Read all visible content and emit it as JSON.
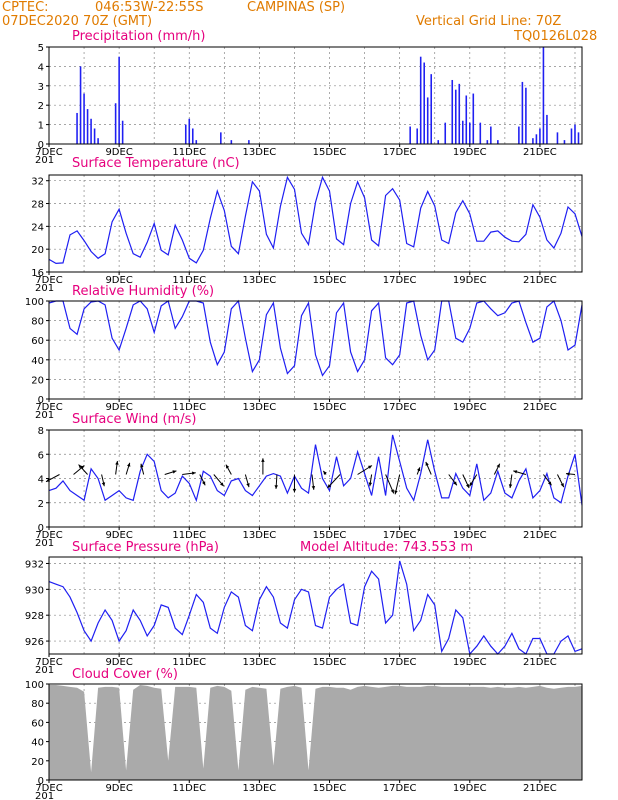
{
  "colors": {
    "header": "#e07b00",
    "title": "#e6007e",
    "series": "#1f1ff2",
    "cloud": "#aaaaaa",
    "grid": "#888888",
    "frame": "#000000"
  },
  "header": {
    "source": "CPTEC:",
    "coords": "046:53W-22:55S",
    "station": "CAMPINAS (SP)",
    "run": "07DEC2020 70Z (GMT)",
    "grid_note": "Vertical Grid Line: 70Z",
    "model": "TQ0126L028"
  },
  "xaxis": {
    "tick_labels": [
      "7DEC",
      "9DEC",
      "11DEC",
      "13DEC",
      "15DEC",
      "17DEC",
      "19DEC",
      "21DEC"
    ],
    "cut_label": "201",
    "range_days": [
      7,
      22.2
    ]
  },
  "panels": {
    "precip": {
      "title": "Precipitation (mm/h)"
    },
    "temp": {
      "title": "Surface Temperature (nC)"
    },
    "rh": {
      "title": "Relative Humidity (%)"
    },
    "wind": {
      "title": "Surface Wind (m/s)"
    },
    "pres": {
      "title": "Surface Pressure (hPa)",
      "extra": "Model Altitude: 743.553 m"
    },
    "cloud": {
      "title": "Cloud Cover (%)"
    }
  },
  "chart_data": [
    {
      "id": "precip",
      "type": "bar",
      "title": "Precipitation (mm/h)",
      "ylim": [
        0,
        5
      ],
      "yticks": [
        0,
        1,
        2,
        3,
        4,
        5
      ],
      "x": [
        7.8,
        7.9,
        8.0,
        8.1,
        8.2,
        8.3,
        8.4,
        8.9,
        9.0,
        9.1,
        10.9,
        11.0,
        11.1,
        11.2,
        11.9,
        12.2,
        12.7,
        17.3,
        17.5,
        17.6,
        17.7,
        17.8,
        17.9,
        18.1,
        18.3,
        18.5,
        18.6,
        18.7,
        18.8,
        18.9,
        19.0,
        19.1,
        19.3,
        19.5,
        19.6,
        19.8,
        20.4,
        20.5,
        20.6,
        20.8,
        20.9,
        21.0,
        21.1,
        21.2,
        21.5,
        21.7,
        21.9,
        22.0,
        22.1
      ],
      "values": [
        1.6,
        4.0,
        2.6,
        1.8,
        1.3,
        0.8,
        0.3,
        2.1,
        4.5,
        1.2,
        1.0,
        1.3,
        0.8,
        0.2,
        0.6,
        0.2,
        0.2,
        0.9,
        0.8,
        4.5,
        4.2,
        2.4,
        3.6,
        0.2,
        1.1,
        3.3,
        2.8,
        3.1,
        1.2,
        2.5,
        1.1,
        2.6,
        1.1,
        0.2,
        0.9,
        0.2,
        0.9,
        3.2,
        2.9,
        0.3,
        0.5,
        0.8,
        5.0,
        1.5,
        0.6,
        0.2,
        0.8,
        1.0,
        0.6
      ]
    },
    {
      "id": "temp",
      "type": "line",
      "title": "Surface Temperature (nC)",
      "ylim": [
        16,
        33
      ],
      "yticks": [
        16,
        20,
        24,
        28,
        32
      ],
      "x": [
        7.0,
        7.2,
        7.4,
        7.6,
        7.8,
        8.0,
        8.2,
        8.4,
        8.6,
        8.8,
        9.0,
        9.2,
        9.4,
        9.6,
        9.8,
        10.0,
        10.2,
        10.4,
        10.6,
        10.8,
        11.0,
        11.2,
        11.4,
        11.6,
        11.8,
        12.0,
        12.2,
        12.4,
        12.6,
        12.8,
        13.0,
        13.2,
        13.4,
        13.6,
        13.8,
        14.0,
        14.2,
        14.4,
        14.6,
        14.8,
        15.0,
        15.2,
        15.4,
        15.6,
        15.8,
        16.0,
        16.2,
        16.4,
        16.6,
        16.8,
        17.0,
        17.2,
        17.4,
        17.6,
        17.8,
        18.0,
        18.2,
        18.4,
        18.6,
        18.8,
        19.0,
        19.2,
        19.4,
        19.6,
        19.8,
        20.0,
        20.2,
        20.4,
        20.6,
        20.8,
        21.0,
        21.2,
        21.4,
        21.6,
        21.8,
        22.0,
        22.2
      ],
      "values": [
        18.2,
        17.5,
        17.6,
        22.5,
        23.2,
        21.5,
        19.6,
        18.4,
        19.2,
        24.8,
        27.0,
        22.8,
        19.2,
        18.6,
        21.2,
        24.5,
        19.8,
        19.0,
        24.2,
        21.6,
        18.4,
        17.6,
        19.8,
        25.4,
        30.2,
        26.8,
        20.5,
        19.2,
        25.8,
        31.8,
        30.2,
        22.6,
        20.2,
        27.5,
        32.6,
        30.5,
        22.8,
        20.8,
        28.2,
        32.6,
        30.2,
        21.8,
        20.8,
        28.0,
        31.8,
        29.0,
        21.6,
        20.6,
        29.4,
        30.6,
        28.6,
        21.0,
        20.4,
        27.2,
        30.1,
        27.6,
        21.6,
        21.0,
        26.4,
        28.5,
        26.2,
        21.4,
        21.4,
        23.0,
        23.2,
        22.1,
        21.4,
        21.3,
        22.6,
        27.8,
        25.6,
        21.6,
        20.2,
        22.8,
        27.4,
        26.2,
        22.2
      ]
    },
    {
      "id": "rh",
      "type": "line",
      "title": "Relative Humidity (%)",
      "ylim": [
        0,
        100
      ],
      "yticks": [
        0,
        20,
        40,
        60,
        80,
        100
      ],
      "x": [
        7.0,
        7.2,
        7.4,
        7.6,
        7.8,
        8.0,
        8.2,
        8.4,
        8.6,
        8.8,
        9.0,
        9.2,
        9.4,
        9.6,
        9.8,
        10.0,
        10.2,
        10.4,
        10.6,
        10.8,
        11.0,
        11.2,
        11.4,
        11.6,
        11.8,
        12.0,
        12.2,
        12.4,
        12.6,
        12.8,
        13.0,
        13.2,
        13.4,
        13.6,
        13.8,
        14.0,
        14.2,
        14.4,
        14.6,
        14.8,
        15.0,
        15.2,
        15.4,
        15.6,
        15.8,
        16.0,
        16.2,
        16.4,
        16.6,
        16.8,
        17.0,
        17.2,
        17.4,
        17.6,
        17.8,
        18.0,
        18.2,
        18.4,
        18.6,
        18.8,
        19.0,
        19.2,
        19.4,
        19.6,
        19.8,
        20.0,
        20.2,
        20.4,
        20.6,
        20.8,
        21.0,
        21.2,
        21.4,
        21.6,
        21.8,
        22.0,
        22.2
      ],
      "values": [
        98,
        100,
        100,
        72,
        66,
        92,
        99,
        100,
        96,
        62,
        50,
        72,
        96,
        100,
        92,
        68,
        95,
        100,
        72,
        84,
        100,
        100,
        98,
        58,
        35,
        48,
        92,
        100,
        62,
        28,
        40,
        86,
        98,
        52,
        26,
        34,
        85,
        98,
        45,
        24,
        34,
        88,
        98,
        48,
        28,
        40,
        90,
        98,
        42,
        35,
        45,
        98,
        100,
        65,
        40,
        50,
        100,
        100,
        62,
        58,
        72,
        98,
        100,
        92,
        85,
        88,
        98,
        100,
        78,
        58,
        62,
        94,
        100,
        80,
        50,
        55,
        96
      ]
    },
    {
      "id": "wind",
      "type": "line",
      "title": "Surface Wind (m/s)",
      "ylim": [
        0,
        8
      ],
      "yticks": [
        0,
        2,
        4,
        6,
        8
      ],
      "x": [
        7.0,
        7.2,
        7.4,
        7.6,
        7.8,
        8.0,
        8.2,
        8.4,
        8.6,
        8.8,
        9.0,
        9.2,
        9.4,
        9.6,
        9.8,
        10.0,
        10.2,
        10.4,
        10.6,
        10.8,
        11.0,
        11.2,
        11.4,
        11.6,
        11.8,
        12.0,
        12.2,
        12.4,
        12.6,
        12.8,
        13.0,
        13.2,
        13.4,
        13.6,
        13.8,
        14.0,
        14.2,
        14.4,
        14.6,
        14.8,
        15.0,
        15.2,
        15.4,
        15.6,
        15.8,
        16.0,
        16.2,
        16.4,
        16.6,
        16.8,
        17.0,
        17.2,
        17.4,
        17.6,
        17.8,
        18.0,
        18.2,
        18.4,
        18.6,
        18.8,
        19.0,
        19.2,
        19.4,
        19.6,
        19.8,
        20.0,
        20.2,
        20.4,
        20.6,
        20.8,
        21.0,
        21.2,
        21.4,
        21.6,
        21.8,
        22.0,
        22.2
      ],
      "values": [
        3.0,
        3.2,
        3.8,
        3.0,
        2.6,
        2.2,
        4.8,
        4.0,
        2.2,
        2.6,
        3.0,
        2.4,
        2.2,
        4.6,
        6.0,
        5.4,
        3.0,
        2.4,
        2.8,
        4.2,
        3.6,
        2.2,
        4.6,
        4.2,
        3.0,
        2.6,
        3.8,
        4.0,
        3.0,
        2.6,
        3.4,
        4.2,
        4.4,
        4.2,
        2.8,
        4.2,
        3.2,
        2.8,
        6.8,
        4.0,
        3.0,
        5.8,
        3.4,
        4.0,
        6.2,
        4.4,
        2.6,
        5.8,
        2.6,
        7.6,
        5.4,
        3.2,
        2.2,
        4.4,
        7.2,
        4.6,
        2.4,
        2.4,
        4.4,
        3.2,
        2.6,
        5.2,
        2.2,
        2.8,
        4.6,
        2.8,
        2.4,
        3.8,
        4.8,
        2.4,
        3.0,
        4.4,
        2.4,
        2.0,
        4.2,
        6.0,
        1.8
      ]
    },
    {
      "id": "pres",
      "type": "line",
      "title": "Surface Pressure (hPa)",
      "ylim": [
        925,
        932.5
      ],
      "yticks": [
        926,
        928,
        930,
        932
      ],
      "x": [
        7.0,
        7.2,
        7.4,
        7.6,
        7.8,
        8.0,
        8.2,
        8.4,
        8.6,
        8.8,
        9.0,
        9.2,
        9.4,
        9.6,
        9.8,
        10.0,
        10.2,
        10.4,
        10.6,
        10.8,
        11.0,
        11.2,
        11.4,
        11.6,
        11.8,
        12.0,
        12.2,
        12.4,
        12.6,
        12.8,
        13.0,
        13.2,
        13.4,
        13.6,
        13.8,
        14.0,
        14.2,
        14.4,
        14.6,
        14.8,
        15.0,
        15.2,
        15.4,
        15.6,
        15.8,
        16.0,
        16.2,
        16.4,
        16.6,
        16.8,
        17.0,
        17.2,
        17.4,
        17.6,
        17.8,
        18.0,
        18.2,
        18.4,
        18.6,
        18.8,
        19.0,
        19.2,
        19.4,
        19.6,
        19.8,
        20.0,
        20.2,
        20.4,
        20.6,
        20.8,
        21.0,
        21.2,
        21.4,
        21.6,
        21.8,
        22.0,
        22.2
      ],
      "values": [
        930.6,
        930.4,
        930.2,
        929.4,
        928.2,
        926.8,
        926.0,
        927.4,
        928.4,
        927.6,
        926.0,
        926.8,
        928.4,
        927.6,
        926.4,
        927.2,
        928.8,
        928.6,
        927.0,
        926.5,
        928.0,
        929.6,
        929.0,
        927.0,
        926.6,
        928.6,
        929.8,
        929.4,
        927.2,
        926.8,
        929.2,
        930.2,
        929.4,
        927.4,
        927.0,
        929.2,
        930.0,
        929.8,
        927.2,
        927.0,
        929.4,
        930.0,
        930.4,
        927.4,
        927.2,
        930.2,
        931.4,
        930.8,
        927.4,
        928.0,
        932.2,
        930.4,
        926.8,
        927.6,
        929.6,
        928.8,
        925.2,
        926.2,
        928.4,
        927.8,
        925.0,
        925.6,
        926.4,
        925.6,
        924.9,
        925.6,
        926.6,
        925.4,
        925.0,
        926.2,
        926.2,
        925.0,
        925.0,
        926.0,
        926.4,
        925.2,
        925.4
      ]
    },
    {
      "id": "cloud",
      "type": "area",
      "title": "Cloud Cover (%)",
      "ylim": [
        0,
        100
      ],
      "yticks": [
        0,
        20,
        40,
        60,
        80,
        100
      ],
      "x": [
        7.0,
        7.2,
        7.4,
        7.6,
        7.8,
        8.0,
        8.2,
        8.4,
        8.6,
        8.8,
        9.0,
        9.2,
        9.4,
        9.6,
        9.8,
        10.0,
        10.2,
        10.4,
        10.6,
        10.8,
        11.0,
        11.2,
        11.4,
        11.6,
        11.8,
        12.0,
        12.2,
        12.4,
        12.6,
        12.8,
        13.0,
        13.2,
        13.4,
        13.6,
        13.8,
        14.0,
        14.2,
        14.4,
        14.6,
        14.8,
        15.0,
        15.2,
        15.4,
        15.6,
        15.8,
        16.0,
        16.2,
        16.4,
        16.6,
        16.8,
        17.0,
        17.2,
        17.4,
        17.6,
        17.8,
        18.0,
        18.2,
        18.4,
        18.6,
        18.8,
        19.0,
        19.2,
        19.4,
        19.6,
        19.8,
        20.0,
        20.2,
        20.4,
        20.6,
        20.8,
        21.0,
        21.2,
        21.4,
        21.6,
        21.8,
        22.0,
        22.2
      ],
      "values": [
        99,
        99,
        98,
        97,
        96,
        92,
        8,
        96,
        97,
        97,
        96,
        10,
        94,
        99,
        98,
        96,
        95,
        20,
        97,
        97,
        97,
        96,
        12,
        96,
        98,
        97,
        93,
        10,
        94,
        97,
        96,
        95,
        15,
        95,
        97,
        98,
        96,
        10,
        95,
        97,
        97,
        96,
        96,
        94,
        97,
        98,
        97,
        96,
        97,
        98,
        98,
        97,
        97,
        97,
        98,
        98,
        97,
        97,
        97,
        97,
        97,
        97,
        97,
        96,
        97,
        96,
        96,
        97,
        96,
        97,
        98,
        96,
        95,
        96,
        97,
        97,
        98
      ]
    }
  ],
  "wind_arrows": {
    "x": [
      7.3,
      7.7,
      8.1,
      8.5,
      8.9,
      9.2,
      9.7,
      10.3,
      10.8,
      11.3,
      11.7,
      12.2,
      12.6,
      13.1,
      13.5,
      14.0,
      14.5,
      14.9,
      15.3,
      15.8,
      16.2,
      16.6,
      17.0,
      17.5,
      17.9,
      18.4,
      18.8,
      19.2,
      19.7,
      20.2,
      20.6,
      21.1,
      21.5,
      22.0
    ],
    "u": [
      -1.5,
      1.2,
      -1.0,
      0.3,
      0.2,
      0.4,
      -0.3,
      1.3,
      1.5,
      0.6,
      1.1,
      -0.6,
      0.4,
      0,
      -0.1,
      0,
      0.2,
      -0.3,
      -1.4,
      1.6,
      -0.2,
      0.9,
      -0.5,
      0.3,
      -0.6,
      0.9,
      0.7,
      -0.8,
      0.6,
      -0.2,
      -1.4,
      0.9,
      0.7,
      -1.0
    ],
    "v": [
      -0.8,
      1.0,
      1.1,
      -1.3,
      1.5,
      1.3,
      1.2,
      0.4,
      0.2,
      -1.2,
      -1.3,
      1.1,
      -1.4,
      1.8,
      -1.6,
      -2.0,
      -1.7,
      0.4,
      -1.5,
      1.0,
      -1.3,
      -2.1,
      -2.2,
      0.8,
      1.4,
      -1.2,
      -1.5,
      -1.3,
      1.2,
      -1.5,
      0.4,
      -1.2,
      -1.4,
      0.1
    ]
  }
}
